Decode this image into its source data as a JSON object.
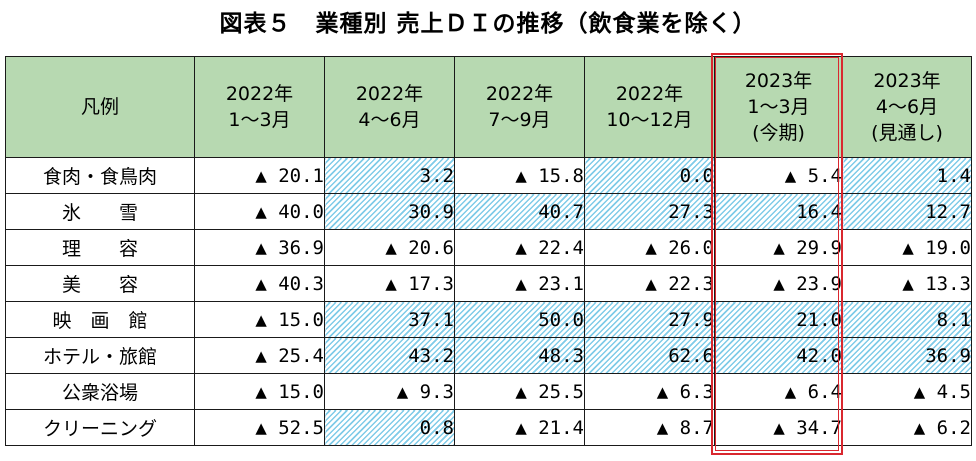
{
  "title": "図表５　業種別 売上ＤＩの推移（飲食業を除く）",
  "header": {
    "legend": "凡例",
    "columns": [
      [
        "2022年",
        "1～3月"
      ],
      [
        "2022年",
        "4～6月"
      ],
      [
        "2022年",
        "7～9月"
      ],
      [
        "2022年",
        "10～12月"
      ],
      [
        "2023年",
        "1～3月",
        "(今期)"
      ],
      [
        "2023年",
        "4～6月",
        "(見通し)"
      ]
    ]
  },
  "rows": [
    {
      "label": "食肉・食鳥肉",
      "values": [
        "▲ 20.1",
        "3.2",
        "▲ 15.8",
        "0.0",
        "▲ 5.4",
        "1.4"
      ]
    },
    {
      "label": "氷　　雪",
      "values": [
        "▲ 40.0",
        "30.9",
        "40.7",
        "27.3",
        "16.4",
        "12.7"
      ]
    },
    {
      "label": "理　　容",
      "values": [
        "▲ 36.9",
        "▲ 20.6",
        "▲ 22.4",
        "▲ 26.0",
        "▲ 29.9",
        "▲ 19.0"
      ]
    },
    {
      "label": "美　　容",
      "values": [
        "▲ 40.3",
        "▲ 17.3",
        "▲ 23.1",
        "▲ 22.3",
        "▲ 23.9",
        "▲ 13.3"
      ]
    },
    {
      "label": "映　画　館",
      "values": [
        "▲ 15.0",
        "37.1",
        "50.0",
        "27.9",
        "21.0",
        "8.1"
      ]
    },
    {
      "label": "ホテル・旅館",
      "values": [
        "▲ 25.4",
        "43.2",
        "48.3",
        "62.6",
        "42.0",
        "36.9"
      ]
    },
    {
      "label": "公衆浴場",
      "values": [
        "▲ 15.0",
        "▲ 9.3",
        "▲ 25.5",
        "▲ 6.3",
        "▲ 6.4",
        "▲ 4.5"
      ]
    },
    {
      "label": "クリーニング",
      "values": [
        "▲ 52.5",
        "0.8",
        "▲ 21.4",
        "▲ 8.7",
        "▲ 34.7",
        "▲ 6.2"
      ]
    }
  ],
  "colors": {
    "header_bg": "#b7d9b1",
    "hatch": "#7fcbe8",
    "highlight_frame": "#d9282f"
  }
}
